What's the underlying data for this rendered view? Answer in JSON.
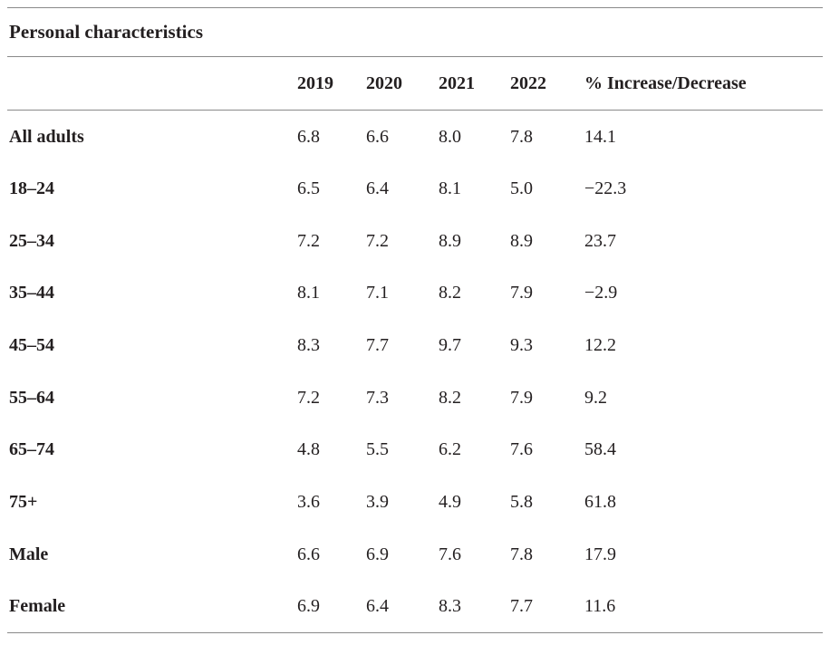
{
  "table": {
    "title": "Personal characteristics",
    "columns": [
      "",
      "2019",
      "2020",
      "2021",
      "2022",
      "% Increase/Decrease"
    ],
    "rows": [
      {
        "label": "All adults",
        "values": [
          "6.8",
          "6.6",
          "8.0",
          "7.8",
          "14.1"
        ]
      },
      {
        "label": "18–24",
        "values": [
          "6.5",
          "6.4",
          "8.1",
          "5.0",
          "−22.3"
        ]
      },
      {
        "label": "25–34",
        "values": [
          "7.2",
          "7.2",
          "8.9",
          "8.9",
          "23.7"
        ]
      },
      {
        "label": "35–44",
        "values": [
          "8.1",
          "7.1",
          "8.2",
          "7.9",
          "−2.9"
        ]
      },
      {
        "label": "45–54",
        "values": [
          "8.3",
          "7.7",
          "9.7",
          "9.3",
          "12.2"
        ]
      },
      {
        "label": "55–64",
        "values": [
          "7.2",
          "7.3",
          "8.2",
          "7.9",
          "9.2"
        ]
      },
      {
        "label": "65–74",
        "values": [
          "4.8",
          "5.5",
          "6.2",
          "7.6",
          "58.4"
        ]
      },
      {
        "label": "75+",
        "values": [
          "3.6",
          "3.9",
          "4.9",
          "5.8",
          "61.8"
        ]
      },
      {
        "label": "Male",
        "values": [
          "6.6",
          "6.9",
          "7.6",
          "7.8",
          "17.9"
        ]
      },
      {
        "label": "Female",
        "values": [
          "6.9",
          "6.4",
          "8.3",
          "7.7",
          "11.6"
        ]
      }
    ]
  },
  "colors": {
    "text": "#231f20",
    "rule": "#8a8a8a",
    "background": "#ffffff"
  },
  "chart_data": {
    "type": "table",
    "title": "Personal characteristics",
    "categories": [
      "2019",
      "2020",
      "2021",
      "2022",
      "% Increase/Decrease"
    ],
    "series": [
      {
        "name": "All adults",
        "values": [
          6.8,
          6.6,
          8.0,
          7.8,
          14.1
        ]
      },
      {
        "name": "18–24",
        "values": [
          6.5,
          6.4,
          8.1,
          5.0,
          -22.3
        ]
      },
      {
        "name": "25–34",
        "values": [
          7.2,
          7.2,
          8.9,
          8.9,
          23.7
        ]
      },
      {
        "name": "35–44",
        "values": [
          8.1,
          7.1,
          8.2,
          7.9,
          -2.9
        ]
      },
      {
        "name": "45–54",
        "values": [
          8.3,
          7.7,
          9.7,
          9.3,
          12.2
        ]
      },
      {
        "name": "55–64",
        "values": [
          7.2,
          7.3,
          8.2,
          7.9,
          9.2
        ]
      },
      {
        "name": "65–74",
        "values": [
          4.8,
          5.5,
          6.2,
          7.6,
          58.4
        ]
      },
      {
        "name": "75+",
        "values": [
          3.6,
          3.9,
          4.9,
          5.8,
          61.8
        ]
      },
      {
        "name": "Male",
        "values": [
          6.6,
          6.9,
          7.6,
          7.8,
          17.9
        ]
      },
      {
        "name": "Female",
        "values": [
          6.9,
          6.4,
          8.3,
          7.7,
          11.6
        ]
      }
    ]
  }
}
